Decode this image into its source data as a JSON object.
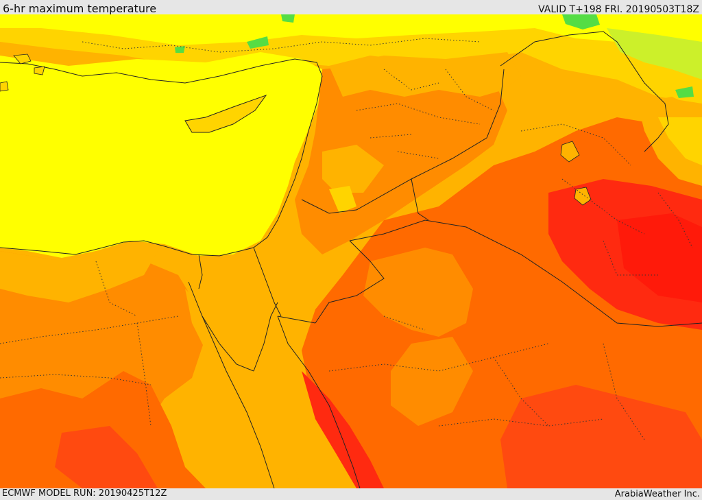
{
  "header": {
    "title": "6-hr maximum temperature",
    "valid": "VALID T+198 FRI. 20190503T18Z"
  },
  "footer": {
    "model_run": "ECMWF MODEL RUN: 20190425T12Z",
    "credit": "ArabiaWeather Inc."
  },
  "palette": {
    "cool_green": "#55dd44",
    "light_yellow_green": "#ccf02a",
    "yellow": "#ffff00",
    "yellow_orange": "#ffd400",
    "light_orange": "#ffb300",
    "orange": "#ff8c00",
    "dark_orange": "#ff6a00",
    "red_orange": "#ff4a10",
    "red": "#ff2a10"
  }
}
